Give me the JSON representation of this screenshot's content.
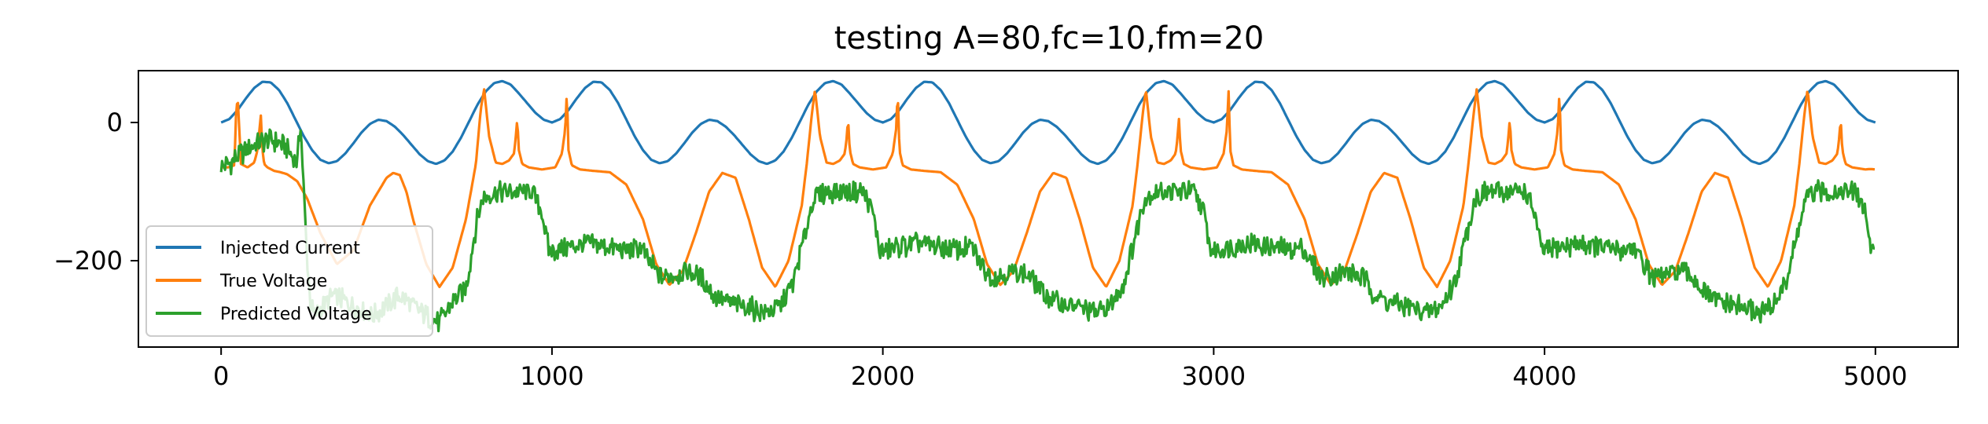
{
  "chart_data": {
    "type": "line",
    "title": "testing A=80,fc=10,fm=20",
    "xlabel": "",
    "ylabel": "",
    "xlim": [
      -250,
      5250
    ],
    "ylim": [
      -325,
      75
    ],
    "xticks": [
      0,
      1000,
      2000,
      3000,
      4000,
      5000
    ],
    "xtick_labels": [
      "0",
      "1000",
      "2000",
      "3000",
      "4000",
      "5000"
    ],
    "yticks": [
      0,
      -200
    ],
    "ytick_labels": [
      "0",
      "−200"
    ],
    "grid": false,
    "legend_position": "lower-left",
    "series": [
      {
        "name": "Injected Current",
        "color": "#1f77b4",
        "pattern": "periodic",
        "period": 1000,
        "x": [
          0,
          25,
          50,
          75,
          100,
          125,
          150,
          175,
          200,
          225,
          250,
          275,
          300,
          325,
          350,
          375,
          400,
          425,
          450,
          475,
          500,
          525,
          550,
          575,
          600,
          625,
          650,
          675,
          700,
          725,
          750,
          775,
          800,
          825,
          850,
          875,
          900,
          925,
          950,
          975,
          1000
        ],
        "y": [
          0,
          5,
          18,
          35,
          50,
          59,
          58,
          47,
          28,
          4,
          -20,
          -40,
          -54,
          -59,
          -56,
          -45,
          -30,
          -14,
          -2,
          4,
          2,
          -6,
          -18,
          -32,
          -46,
          -56,
          -60,
          -55,
          -42,
          -22,
          2,
          26,
          45,
          57,
          60,
          55,
          42,
          28,
          14,
          4,
          0
        ]
      },
      {
        "name": "True Voltage",
        "color": "#ff7f0e",
        "pattern": "periodic_after",
        "period": 1000,
        "initial": {
          "x": [
            0,
            20,
            40,
            45,
            50,
            60,
            80,
            100,
            110,
            120,
            125,
            130,
            140,
            160,
            180,
            200,
            230,
            260,
            300,
            350,
            400,
            450,
            500,
            520,
            540,
            560,
            580,
            620,
            660,
            700,
            740,
            770,
            785,
            795
          ],
          "y": [
            -65,
            -65,
            -62,
            10,
            38,
            -60,
            -65,
            -58,
            -40,
            10,
            -40,
            -60,
            -65,
            -70,
            -72,
            -75,
            -85,
            -110,
            -160,
            -205,
            -185,
            -120,
            -80,
            -73,
            -76,
            -100,
            -140,
            -205,
            -238,
            -210,
            -140,
            -60,
            20,
            48
          ]
        },
        "cycle_start": 795,
        "cycle": {
          "x": [
            0,
            15,
            35,
            55,
            75,
            90,
            95,
            100,
            105,
            115,
            135,
            175,
            215,
            235,
            245,
            250,
            255,
            265,
            290,
            330,
            380,
            430,
            480,
            520,
            560,
            600,
            640,
            680,
            720,
            760,
            800,
            840,
            880,
            920,
            960,
            975,
            990,
            1000
          ],
          "y": [
            48,
            -20,
            -58,
            -60,
            -55,
            -45,
            -25,
            5,
            -40,
            -60,
            -65,
            -68,
            -65,
            -45,
            -10,
            45,
            -40,
            -62,
            -68,
            -70,
            -72,
            -90,
            -140,
            -205,
            -235,
            -215,
            -160,
            -100,
            -73,
            -80,
            -140,
            -210,
            -238,
            -200,
            -120,
            -60,
            10,
            48
          ]
        },
        "end_x": 5000,
        "end_y": -68
      },
      {
        "name": "Predicted Voltage",
        "color": "#2ca02c",
        "pattern": "noisy_periodic_after",
        "period": 1000,
        "noise_amplitude": 18,
        "initial": {
          "x": [
            0,
            30,
            60,
            90,
            120,
            150,
            180,
            210,
            230,
            240,
            250,
            260,
            270,
            280,
            300,
            340,
            380,
            420,
            460,
            500,
            540,
            580,
            620,
            660,
            700,
            740,
            770
          ],
          "y": [
            -65,
            -58,
            -45,
            -35,
            -28,
            -25,
            -30,
            -45,
            -60,
            0,
            -100,
            -200,
            -260,
            -280,
            -270,
            -250,
            -260,
            -270,
            -280,
            -265,
            -250,
            -265,
            -280,
            -290,
            -260,
            -240,
            -150
          ]
        },
        "cycle_start": 770,
        "cycle": {
          "x": [
            0,
            20,
            60,
            120,
            170,
            200,
            220,
            240,
            280,
            340,
            400,
            460,
            500,
            520,
            560,
            600,
            640,
            680,
            720,
            760,
            800,
            840,
            880,
            920,
            960,
            1000
          ],
          "y": [
            -150,
            -110,
            -100,
            -100,
            -100,
            -130,
            -185,
            -185,
            -180,
            -175,
            -180,
            -185,
            -180,
            -200,
            -225,
            -220,
            -215,
            -225,
            -250,
            -260,
            -265,
            -270,
            -275,
            -265,
            -230,
            -150
          ]
        },
        "end_x": 5000,
        "end_y": -180
      }
    ]
  }
}
